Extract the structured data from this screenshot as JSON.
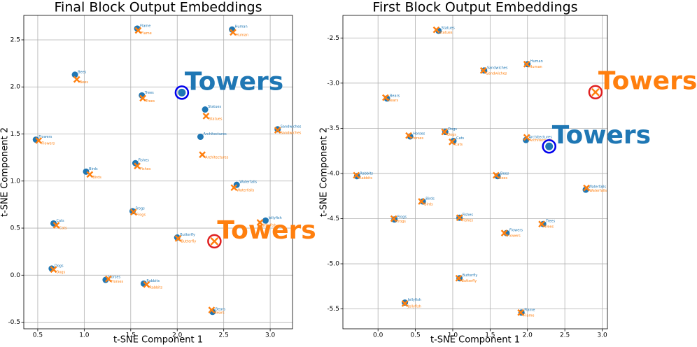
{
  "chart_data": [
    {
      "type": "scatter",
      "title": "Final Block Output Embeddings",
      "xlabel": "t-SNE Component 1",
      "ylabel": "t-SNE Component 2",
      "xlim": [
        0.35,
        3.24
      ],
      "ylim": [
        -0.57,
        2.76
      ],
      "xticks": [
        0.5,
        {
          "value": 1,
          "label": "1.0"
        },
        1.5,
        {
          "value": 2,
          "label": "2.0"
        },
        2.5,
        {
          "value": 3,
          "label": "3.0"
        }
      ],
      "yticks": [
        -0.5,
        {
          "value": 0,
          "label": "0.0"
        },
        0.5,
        {
          "value": 1,
          "label": "1.0"
        },
        1.5,
        {
          "value": 2,
          "label": "2.0"
        },
        2.5
      ],
      "grid": true,
      "series": [
        {
          "color": "#1f77b4",
          "marker": "o",
          "labels": [
            "Flame",
            "Human",
            "Bees",
            "Trees",
            "Statues",
            "Flowers",
            "Architectures",
            "Sandwiches",
            "Fishes",
            "Birds",
            "Waterfalls",
            "Frogs",
            "Jellyfish",
            "Cats",
            "Butterfly",
            "Dogs",
            "Horses",
            "Rabbits",
            "Bears"
          ],
          "x": [
            1.57,
            2.59,
            0.9,
            1.62,
            2.3,
            0.48,
            2.25,
            3.08,
            1.55,
            1.02,
            2.64,
            1.52,
            2.95,
            0.67,
            2.0,
            0.65,
            1.23,
            1.64,
            2.38
          ],
          "y": [
            2.62,
            2.61,
            2.13,
            1.91,
            1.76,
            1.44,
            1.47,
            1.55,
            1.19,
            1.1,
            0.96,
            0.68,
            0.58,
            0.55,
            0.4,
            0.07,
            -0.05,
            -0.09,
            -0.39
          ]
        },
        {
          "color": "#ff7f0e",
          "marker": "x",
          "labels": [
            "Flame",
            "Human",
            "Bees",
            "Trees",
            "Statues",
            "Flowers",
            "Architectures",
            "Sandwiches",
            "Fishes",
            "Birds",
            "Waterfalls",
            "Frogs",
            "Jellyfish",
            "Cats",
            "Butterfly",
            "Dogs",
            "Horses",
            "Rabbits",
            "Bears"
          ],
          "x": [
            1.58,
            2.6,
            0.92,
            1.63,
            2.31,
            0.51,
            2.27,
            3.08,
            1.57,
            1.06,
            2.61,
            1.53,
            2.89,
            0.7,
            2.01,
            0.67,
            1.26,
            1.67,
            2.37
          ],
          "y": [
            2.6,
            2.58,
            2.08,
            1.88,
            1.69,
            1.43,
            1.28,
            1.54,
            1.16,
            1.07,
            0.93,
            0.67,
            0.56,
            0.53,
            0.39,
            0.06,
            -0.04,
            -0.1,
            -0.37
          ]
        },
        {
          "color": "#1f77b4",
          "marker": "o",
          "ring_color": "#0000ee",
          "label_size": "large",
          "labels": [
            "Towers"
          ],
          "x": [
            2.05
          ],
          "y": [
            1.94
          ]
        },
        {
          "color": "#ff7f0e",
          "marker": "x",
          "ring_color": "#e02020",
          "label_size": "large",
          "labels": [
            "Towers"
          ],
          "x": [
            2.4
          ],
          "y": [
            0.36
          ]
        }
      ]
    },
    {
      "type": "scatter",
      "title": "First Block Output Embeddings",
      "xlabel": "t-SNE Component 1",
      "ylabel": "t-SNE Component 2",
      "xlim": [
        -0.47,
        3.07
      ],
      "ylim": [
        -5.72,
        -2.25
      ],
      "xticks": [
        {
          "value": 0,
          "label": "0.0"
        },
        0.5,
        {
          "value": 1,
          "label": "1.0"
        },
        1.5,
        {
          "value": 2,
          "label": "2.0"
        },
        2.5,
        {
          "value": 3,
          "label": "3.0"
        }
      ],
      "yticks": [
        -2.5,
        {
          "value": -3,
          "label": "-3.0"
        },
        -3.5,
        {
          "value": -4,
          "label": "-4.0"
        },
        -4.5,
        {
          "value": -5,
          "label": "-5.0"
        },
        -5.5
      ],
      "grid": true,
      "series": [
        {
          "color": "#1f77b4",
          "marker": "o",
          "labels": [
            "Statues",
            "Sandwiches",
            "Human",
            "Bears",
            "Horses",
            "Dogs",
            "Cats",
            "Architectures",
            "Rabbits",
            "Bees",
            "Waterfalls",
            "Birds",
            "Fishes",
            "Frogs",
            "Trees",
            "Flowers",
            "Butterfly",
            "Jellyfish",
            "Flame"
          ],
          "x": [
            0.81,
            1.42,
            2.0,
            0.12,
            0.43,
            0.9,
            1.01,
            1.98,
            -0.28,
            1.6,
            2.78,
            0.6,
            1.09,
            0.22,
            2.21,
            1.72,
            1.09,
            0.36,
            1.92
          ],
          "y": [
            -2.42,
            -2.86,
            -2.79,
            -3.17,
            -3.59,
            -3.54,
            -3.64,
            -3.63,
            -4.03,
            -4.03,
            -4.18,
            -4.31,
            -4.49,
            -4.51,
            -4.56,
            -4.66,
            -5.16,
            -5.43,
            -5.54
          ]
        },
        {
          "color": "#ff7f0e",
          "marker": "x",
          "labels": [
            "Statues",
            "Sandwiches",
            "Human",
            "Bears",
            "Horses",
            "Dogs",
            "Cats",
            "Architectures",
            "Rabbits",
            "Bees",
            "Waterfalls",
            "Birds",
            "Fishes",
            "Frogs",
            "Trees",
            "Flowers",
            "Butterfly",
            "Jellyfish",
            "Flame"
          ],
          "x": [
            0.78,
            1.41,
            1.99,
            0.1,
            0.41,
            0.89,
            0.99,
            1.99,
            -0.29,
            1.58,
            2.79,
            0.58,
            1.09,
            0.21,
            2.19,
            1.69,
            1.08,
            0.36,
            1.91
          ],
          "y": [
            -2.41,
            -2.86,
            -2.79,
            -3.16,
            -3.58,
            -3.54,
            -3.65,
            -3.6,
            -4.02,
            -4.02,
            -4.16,
            -4.31,
            -4.49,
            -4.5,
            -4.56,
            -4.66,
            -5.16,
            -5.44,
            -5.54
          ]
        },
        {
          "color": "#1f77b4",
          "marker": "o",
          "ring_color": "#0000ee",
          "label_size": "large",
          "labels": [
            "Towers"
          ],
          "x": [
            2.29
          ],
          "y": [
            -3.7
          ]
        },
        {
          "color": "#ff7f0e",
          "marker": "x",
          "ring_color": "#e02020",
          "label_size": "large",
          "labels": [
            "Towers"
          ],
          "x": [
            2.91
          ],
          "y": [
            -3.1
          ]
        }
      ]
    }
  ]
}
